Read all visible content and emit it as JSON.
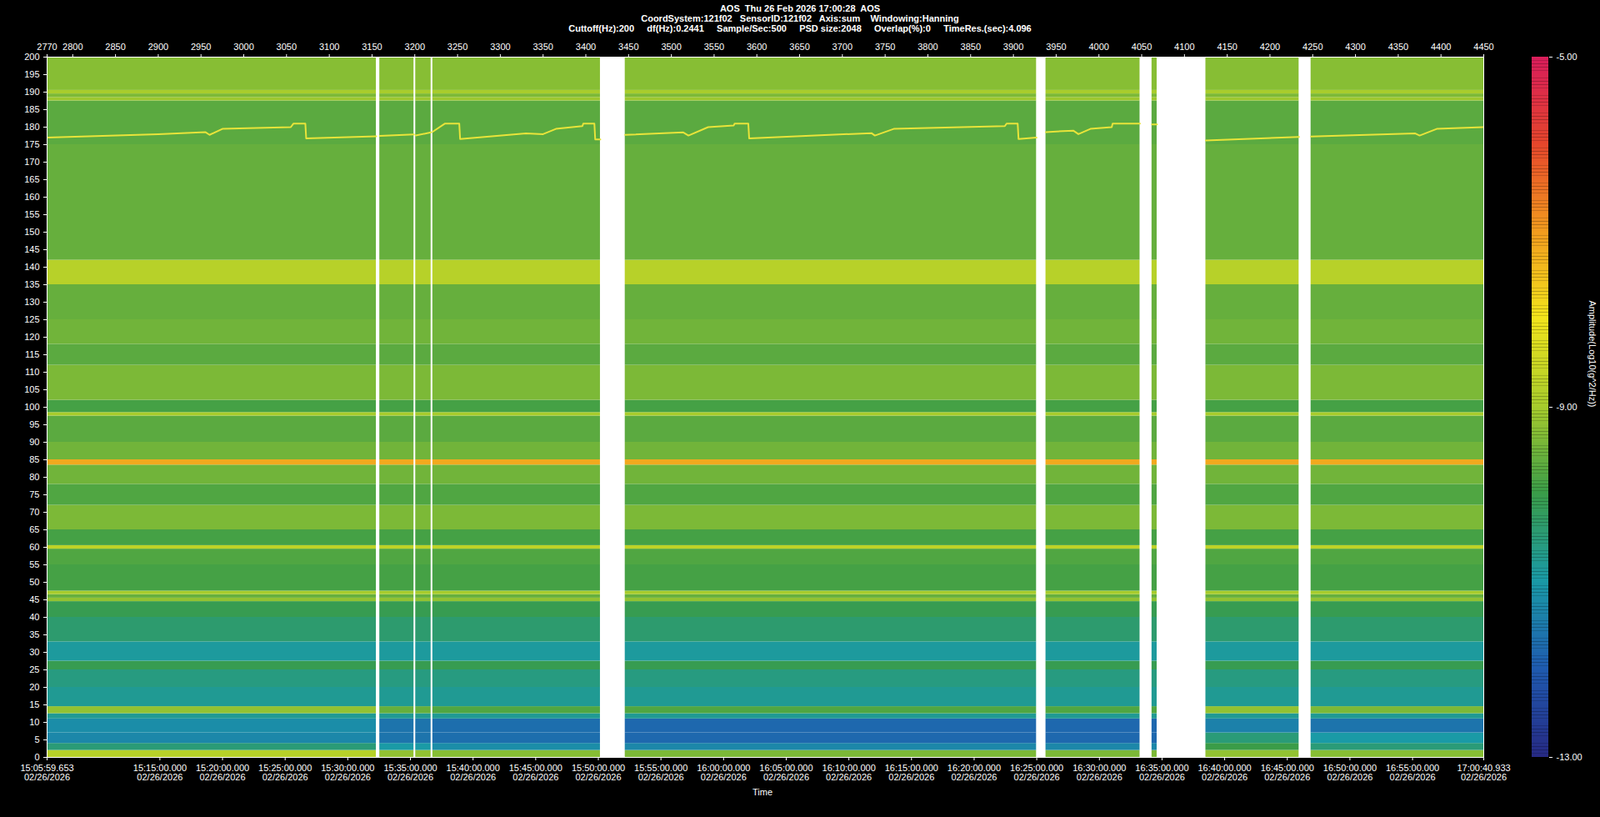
{
  "chart_data": {
    "type": "heatmap",
    "title": "AOS  Thu 26 Feb 2026 17:00:28  AOS",
    "subtitle": [
      "CoordSystem:121f02   SensorID:121f02   Axis:sum    Windowing:Hanning",
      "Cuttoff(Hz):200     df(Hz):0.2441     Sample/Sec:500     PSD size:2048     Overlap(%):0     TimeRes.(sec):4.096"
    ],
    "x_label": "Time",
    "xlim": [
      2770,
      4450
    ],
    "xticks": [
      2770,
      2800,
      2850,
      2900,
      2950,
      3000,
      3050,
      3100,
      3150,
      3200,
      3250,
      3300,
      3350,
      3400,
      3450,
      3500,
      3550,
      3600,
      3650,
      3700,
      3750,
      3800,
      3850,
      3900,
      3950,
      4000,
      4050,
      4100,
      4150,
      4200,
      4250,
      4300,
      4350,
      4400,
      4450
    ],
    "time_ticks": [
      {
        "value": 2770,
        "label": "15:05:59.653\n02/26/2026"
      },
      {
        "value": 2901.92,
        "label": "15:15:00.000\n02/26/2026"
      },
      {
        "value": 2975.16,
        "label": "15:20:00.000\n02/26/2026"
      },
      {
        "value": 3048.41,
        "label": "15:25:00.000\n02/26/2026"
      },
      {
        "value": 3121.65,
        "label": "15:30:00.000\n02/26/2026"
      },
      {
        "value": 3194.89,
        "label": "15:35:00.000\n02/26/2026"
      },
      {
        "value": 3268.13,
        "label": "15:40:00.000\n02/26/2026"
      },
      {
        "value": 3341.38,
        "label": "15:45:00.000\n02/26/2026"
      },
      {
        "value": 3414.62,
        "label": "15:50:00.000\n02/26/2026"
      },
      {
        "value": 3487.86,
        "label": "15:55:00.000\n02/26/2026"
      },
      {
        "value": 3561.1,
        "label": "16:00:00.000\n02/26/2026"
      },
      {
        "value": 3634.34,
        "label": "16:05:00.000\n02/26/2026"
      },
      {
        "value": 3707.59,
        "label": "16:10:00.000\n02/26/2026"
      },
      {
        "value": 3780.83,
        "label": "16:15:00.000\n02/26/2026"
      },
      {
        "value": 3854.07,
        "label": "16:20:00.000\n02/26/2026"
      },
      {
        "value": 3927.31,
        "label": "16:25:00.000\n02/26/2026"
      },
      {
        "value": 4000.56,
        "label": "16:30:00.000\n02/26/2026"
      },
      {
        "value": 4073.8,
        "label": "16:35:00.000\n02/26/2026"
      },
      {
        "value": 4147.04,
        "label": "16:40:00.000\n02/26/2026"
      },
      {
        "value": 4220.28,
        "label": "16:45:00.000\n02/26/2026"
      },
      {
        "value": 4293.52,
        "label": "16:50:00.000\n02/26/2026"
      },
      {
        "value": 4366.77,
        "label": "16:55:00.000\n02/26/2026"
      },
      {
        "value": 4450,
        "label": "17:00:40.933\n02/26/2026"
      }
    ],
    "ylim": [
      0,
      200
    ],
    "yticks": [
      0,
      5,
      10,
      15,
      20,
      25,
      30,
      35,
      40,
      45,
      50,
      55,
      60,
      65,
      70,
      75,
      80,
      85,
      90,
      95,
      100,
      105,
      110,
      115,
      120,
      125,
      130,
      135,
      140,
      145,
      150,
      155,
      160,
      165,
      170,
      175,
      180,
      185,
      190,
      195,
      200
    ],
    "cells": {
      "columns": [
        [
          2770,
          3155
        ],
        [
          3159,
          3199
        ],
        [
          3201,
          3219
        ],
        [
          3221,
          3417
        ],
        [
          3446,
          3927
        ],
        [
          3938,
          4048
        ],
        [
          4062,
          4068
        ],
        [
          4125,
          4234
        ],
        [
          4248,
          4450
        ]
      ],
      "rows": [
        [
          0,
          2
        ],
        [
          2,
          4
        ],
        [
          4,
          7
        ],
        [
          7,
          11
        ],
        [
          11,
          12.5
        ],
        [
          12.5,
          14.5
        ],
        [
          14.5,
          20
        ],
        [
          20,
          25
        ],
        [
          25,
          27.5
        ],
        [
          27.5,
          33
        ],
        [
          33,
          40
        ],
        [
          40,
          44.5
        ],
        [
          44.5,
          45.5
        ],
        [
          45.5,
          46.5
        ],
        [
          46.5,
          47.5
        ],
        [
          47.5,
          55
        ],
        [
          55,
          59.5
        ],
        [
          59.5,
          60.5
        ],
        [
          60.5,
          65
        ],
        [
          65,
          72
        ],
        [
          72,
          78
        ],
        [
          78,
          83.5
        ],
        [
          83.5,
          85
        ],
        [
          85,
          90
        ],
        [
          90,
          97.5
        ],
        [
          97.5,
          98.5
        ],
        [
          98.5,
          102
        ],
        [
          102,
          112
        ],
        [
          112,
          118
        ],
        [
          118,
          125
        ],
        [
          125,
          135
        ],
        [
          135,
          142
        ],
        [
          142,
          150
        ],
        [
          150,
          175
        ],
        [
          175,
          187.5
        ],
        [
          187.5,
          188.5
        ],
        [
          188.5,
          189.5
        ],
        [
          189.5,
          190.5
        ],
        [
          190.5,
          200
        ]
      ],
      "values": [
        [
          -8.8,
          -9.2,
          -9.2,
          -9.3,
          -9.4,
          -9.4,
          -9.4,
          -9.2,
          -9.3
        ],
        [
          -10.5,
          -11.0,
          -11.0,
          -11.2,
          -11.3,
          -11.3,
          -11.3,
          -10.0,
          -10.5
        ],
        [
          -11.3,
          -11.6,
          -11.6,
          -11.7,
          -11.8,
          -11.8,
          -11.8,
          -10.5,
          -11.0
        ],
        [
          -11.2,
          -11.6,
          -11.6,
          -11.7,
          -11.8,
          -11.8,
          -11.8,
          -11.4,
          -11.6
        ],
        [
          -10.8,
          -10.8,
          -10.8,
          -10.8,
          -10.8,
          -10.8,
          -10.8,
          -10.8,
          -10.8
        ],
        [
          -9.2,
          -9.6,
          -9.6,
          -9.8,
          -9.8,
          -9.8,
          -9.8,
          -9.2,
          -9.4
        ],
        [
          -10.8,
          -10.8,
          -10.8,
          -10.8,
          -10.8,
          -10.8,
          -10.8,
          -10.8,
          -10.8
        ],
        [
          -10.6,
          -10.6,
          -10.6,
          -10.6,
          -10.6,
          -10.6,
          -10.6,
          -10.6,
          -10.6
        ],
        [
          -10.1,
          -10.1,
          -10.1,
          -10.1,
          -10.1,
          -10.1,
          -10.1,
          -10.1,
          -10.1
        ],
        [
          -10.9,
          -10.9,
          -10.9,
          -10.9,
          -10.9,
          -10.9,
          -10.9,
          -10.9,
          -10.9
        ],
        [
          -10.4,
          -10.4,
          -10.4,
          -10.4,
          -10.4,
          -10.4,
          -10.4,
          -10.4,
          -10.4
        ],
        [
          -10.1,
          -10.1,
          -10.1,
          -10.1,
          -10.1,
          -10.1,
          -10.1,
          -10.1,
          -10.1
        ],
        [
          -9.2,
          -9.2,
          -9.2,
          -9.2,
          -9.2,
          -9.2,
          -9.2,
          -9.2,
          -9.2
        ],
        [
          -9.6,
          -9.6,
          -9.6,
          -9.6,
          -9.6,
          -9.6,
          -9.6,
          -9.6,
          -9.6
        ],
        [
          -9.0,
          -9.0,
          -9.0,
          -9.0,
          -9.0,
          -9.0,
          -9.0,
          -9.0,
          -9.0
        ],
        [
          -9.9,
          -9.9,
          -9.9,
          -9.9,
          -9.9,
          -9.9,
          -9.9,
          -9.9,
          -9.9
        ],
        [
          -9.8,
          -9.8,
          -9.8,
          -9.8,
          -9.8,
          -9.8,
          -9.8,
          -9.8,
          -9.8
        ],
        [
          -8.7,
          -8.7,
          -8.7,
          -8.7,
          -8.7,
          -8.7,
          -8.7,
          -8.7,
          -8.7
        ],
        [
          -9.9,
          -9.9,
          -9.9,
          -9.9,
          -9.9,
          -9.9,
          -9.9,
          -9.9,
          -9.9
        ],
        [
          -9.4,
          -9.4,
          -9.4,
          -9.4,
          -9.4,
          -9.4,
          -9.4,
          -9.4,
          -9.4
        ],
        [
          -9.8,
          -9.8,
          -9.8,
          -9.8,
          -9.8,
          -9.8,
          -9.8,
          -9.8,
          -9.8
        ],
        [
          -9.5,
          -9.5,
          -9.5,
          -9.5,
          -9.5,
          -9.5,
          -9.5,
          -9.5,
          -9.5
        ],
        [
          -7.2,
          -7.2,
          -7.2,
          -7.2,
          -7.2,
          -7.2,
          -7.2,
          -7.2,
          -7.2
        ],
        [
          -9.5,
          -9.5,
          -9.5,
          -9.5,
          -9.5,
          -9.5,
          -9.5,
          -9.5,
          -9.5
        ],
        [
          -9.7,
          -9.7,
          -9.7,
          -9.7,
          -9.7,
          -9.7,
          -9.7,
          -9.7,
          -9.7
        ],
        [
          -9.0,
          -9.0,
          -9.0,
          -9.0,
          -9.0,
          -9.0,
          -9.0,
          -9.0,
          -9.0
        ],
        [
          -9.9,
          -9.9,
          -9.9,
          -9.9,
          -9.9,
          -9.9,
          -9.9,
          -9.9,
          -9.9
        ],
        [
          -9.4,
          -9.4,
          -9.4,
          -9.4,
          -9.4,
          -9.4,
          -9.4,
          -9.4,
          -9.4
        ],
        [
          -9.7,
          -9.7,
          -9.7,
          -9.7,
          -9.7,
          -9.7,
          -9.7,
          -9.7,
          -9.7
        ],
        [
          -9.5,
          -9.5,
          -9.5,
          -9.5,
          -9.5,
          -9.5,
          -9.5,
          -9.5,
          -9.5
        ],
        [
          -9.6,
          -9.6,
          -9.6,
          -9.6,
          -9.6,
          -9.6,
          -9.6,
          -9.6,
          -9.6
        ],
        [
          -8.8,
          -8.8,
          -8.8,
          -8.8,
          -8.8,
          -8.8,
          -8.8,
          -8.8,
          -8.8
        ],
        [
          -9.6,
          -9.6,
          -9.6,
          -9.6,
          -9.6,
          -9.6,
          -9.6,
          -9.6,
          -9.6
        ],
        [
          -9.6,
          -9.6,
          -9.6,
          -9.6,
          -9.6,
          -9.6,
          -9.6,
          -9.6,
          -9.6
        ],
        [
          -9.7,
          -9.7,
          -9.7,
          -9.7,
          -9.7,
          -9.7,
          -9.7,
          -9.7,
          -9.7
        ],
        [
          -9.1,
          -9.1,
          -9.1,
          -9.1,
          -9.1,
          -9.1,
          -9.1,
          -9.1,
          -9.1
        ],
        [
          -9.4,
          -9.4,
          -9.4,
          -9.4,
          -9.4,
          -9.4,
          -9.4,
          -9.4,
          -9.4
        ],
        [
          -9.0,
          -9.0,
          -9.0,
          -9.0,
          -9.0,
          -9.0,
          -9.0,
          -9.0,
          -9.0
        ],
        [
          -9.3,
          -9.3,
          -9.3,
          -9.3,
          -9.3,
          -9.3,
          -9.3,
          -9.3,
          -9.3
        ]
      ]
    },
    "series": [
      {
        "type": "line",
        "color": "#e8e43a",
        "x": [
          2770,
          2900,
          2955,
          2960,
          2975,
          3055,
          3058,
          3072,
          3073,
          3155,
          3157,
          3159,
          3199,
          3200,
          3201,
          3219,
          3220,
          3221,
          3235,
          3252,
          3253,
          3330,
          3350,
          3365,
          3396,
          3397,
          3410,
          3411,
          3417,
          3430,
          3446,
          3514,
          3520,
          3543,
          3573,
          3574,
          3590,
          3591,
          3734,
          3738,
          3760,
          3890,
          3892,
          3905,
          3906,
          3927,
          3930,
          3938,
          3970,
          3976,
          3990,
          4015,
          4016,
          4048,
          4055,
          4062,
          4068,
          4100,
          4125,
          4234,
          4240,
          4248,
          4370,
          4375,
          4395,
          4450
        ],
        "values": [
          177.0,
          178.0,
          178.6,
          177.8,
          179.5,
          180.0,
          181.0,
          181.0,
          176.8,
          177.4,
          null,
          177.5,
          177.9,
          null,
          177.6,
          178.5,
          null,
          178.7,
          181.0,
          181.0,
          176.6,
          178.2,
          178.0,
          179.5,
          180.3,
          181.0,
          181.0,
          176.5,
          176.5,
          null,
          177.8,
          178.5,
          177.6,
          180.0,
          180.5,
          181.0,
          181.0,
          176.8,
          178.3,
          177.6,
          179.5,
          180.3,
          181.0,
          181.0,
          176.6,
          177.0,
          null,
          178.6,
          179.0,
          178.0,
          179.5,
          180.0,
          181.0,
          181.0,
          null,
          180.8,
          180.8,
          null,
          176.2,
          177.2,
          null,
          177.3,
          178.2,
          177.6,
          179.5,
          180.0
        ]
      }
    ],
    "colorbar": {
      "label": "Amplitude(Log10(g^2/Hz))",
      "range": [
        -13,
        -5
      ],
      "ticks": [
        {
          "value": -13,
          "label": "-13.00"
        },
        {
          "value": -9,
          "label": "-9.00"
        },
        {
          "value": -5,
          "label": "-5.00"
        }
      ]
    }
  }
}
